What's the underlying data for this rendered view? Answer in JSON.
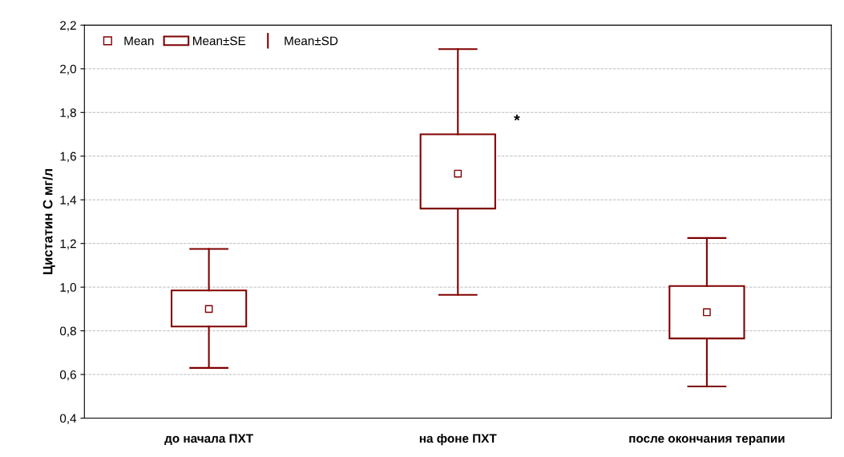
{
  "chart_data": {
    "type": "box",
    "ylabel": "Цистатин С мг/л",
    "color": "#800000",
    "categories": [
      "до начала ПХТ",
      "на фоне ПХТ",
      "после окончания терапии"
    ],
    "boxes": [
      {
        "low": 0.63,
        "q1": 0.82,
        "median": 0.9,
        "q3": 0.985,
        "high": 1.175
      },
      {
        "low": 0.965,
        "q1": 1.36,
        "median": 1.52,
        "q3": 1.7,
        "high": 2.09
      },
      {
        "low": 0.545,
        "q1": 0.765,
        "median": 0.885,
        "q3": 1.005,
        "high": 1.225
      }
    ],
    "annotations": [
      "Mean",
      "Mean±SE",
      "Mean±SD",
      "*"
    ],
    "ylim": [
      0.4,
      2.2
    ],
    "yticks": [
      {
        "value": 0.4,
        "label": "0,4"
      },
      {
        "value": 0.6,
        "label": "0,6"
      },
      {
        "value": 0.8,
        "label": "0,8"
      },
      {
        "value": 1.0,
        "label": "1,0"
      },
      {
        "value": 1.2,
        "label": "1,2"
      },
      {
        "value": 1.4,
        "label": "1,4"
      },
      {
        "value": 1.6,
        "label": "1,6"
      },
      {
        "value": 1.8,
        "label": "1,8"
      },
      {
        "value": 2.0,
        "label": "2,0"
      },
      {
        "value": 2.2,
        "label": "2,2"
      }
    ],
    "grid": "y",
    "marker": "square"
  }
}
